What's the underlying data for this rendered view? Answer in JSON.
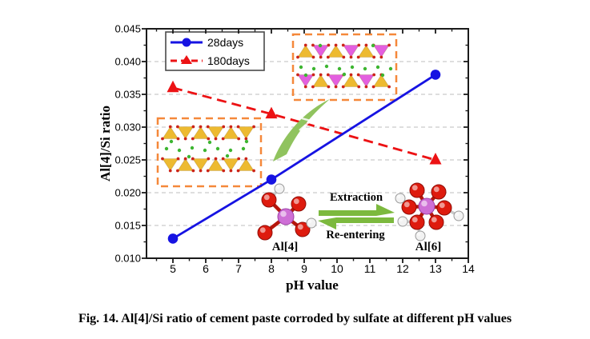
{
  "figure": {
    "caption": "Fig. 14. Al[4]/Si ratio of cement paste corroded by sulfate at different pH values"
  },
  "chart_data": {
    "type": "line",
    "title": "",
    "xlabel": "pH value",
    "ylabel": "Al[4]/Si ratio",
    "xlim": [
      4.2,
      14
    ],
    "ylim": [
      0.01,
      0.045
    ],
    "x_ticks": [
      5,
      6,
      7,
      8,
      9,
      10,
      11,
      12,
      13,
      14
    ],
    "y_ticks": [
      "0.010",
      "0.015",
      "0.020",
      "0.025",
      "0.030",
      "0.035",
      "0.040",
      "0.045"
    ],
    "grid": "horizontal-dashed",
    "legend": {
      "position": "top-left",
      "entries": [
        {
          "label": "28days",
          "color": "#1613E2",
          "marker": "circle",
          "line": "solid"
        },
        {
          "label": "180days",
          "color": "#EC1214",
          "marker": "triangle",
          "line": "dashed"
        }
      ]
    },
    "series": [
      {
        "name": "28days",
        "x": [
          5,
          8,
          13
        ],
        "y": [
          0.013,
          0.022,
          0.038
        ]
      },
      {
        "name": "180days",
        "x": [
          5,
          8,
          13
        ],
        "y": [
          0.036,
          0.032,
          0.025
        ]
      }
    ]
  },
  "annotations": {
    "extraction": "Extraction",
    "reentering": "Re-entering",
    "al4": "Al[4]",
    "al6": "Al[6]"
  },
  "colors": {
    "blue": "#1613E2",
    "red": "#EC1214",
    "inset_border": "#F5883A",
    "silicate_yellow": "#EDBA30",
    "silicate_magenta": "#E35FDF",
    "vertex_red": "#CC2418",
    "ion_green": "#3DB531",
    "arrow_green": "#90C35E",
    "harpoon_green": "#7CB93E",
    "grid": "#CBCBCB",
    "axis": "#1A1A1A",
    "ball_red": "#DE1B0E",
    "ball_al": "#CE6FD6",
    "ball_h": "#F2F2F2",
    "bond_red": "#B5160C",
    "bond_h": "#C8C8C8"
  }
}
